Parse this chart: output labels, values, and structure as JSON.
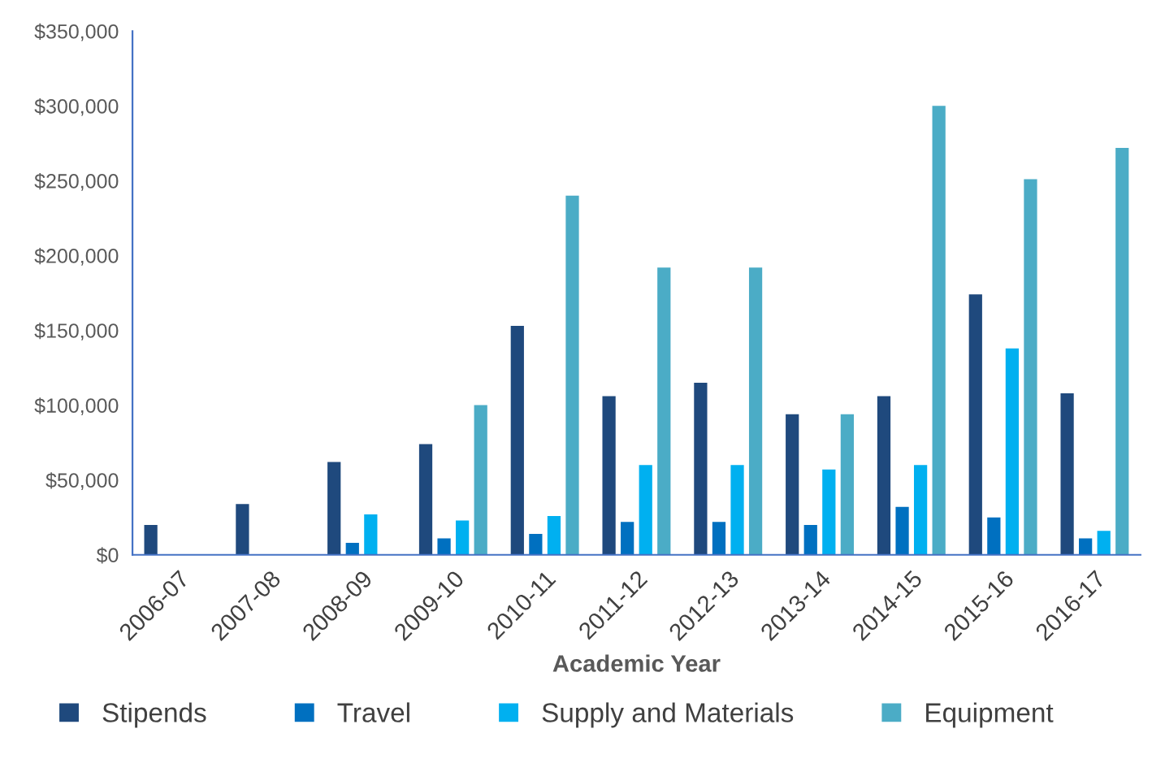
{
  "chart_data": {
    "type": "bar",
    "xlabel": "Academic Year",
    "categories": [
      "2006-07",
      "2007-08",
      "2008-09",
      "2009-10",
      "2010-11",
      "2011-12",
      "2012-13",
      "2013-14",
      "2014-15",
      "2015-16",
      "2016-17"
    ],
    "series": [
      {
        "name": "Stipends",
        "color": "#1f497d",
        "values": [
          20000,
          34000,
          62000,
          74000,
          153000,
          106000,
          115000,
          94000,
          106000,
          174000,
          108000
        ]
      },
      {
        "name": "Travel",
        "color": "#0070c0",
        "values": [
          null,
          null,
          8000,
          11000,
          14000,
          22000,
          22000,
          20000,
          32000,
          25000,
          11000
        ]
      },
      {
        "name": "Supply and Materials",
        "color": "#00b0f0",
        "values": [
          null,
          null,
          27000,
          23000,
          26000,
          60000,
          60000,
          57000,
          60000,
          138000,
          16000
        ]
      },
      {
        "name": "Equipment",
        "color": "#4bacc6",
        "values": [
          null,
          null,
          null,
          100000,
          240000,
          192000,
          192000,
          94000,
          300000,
          251000,
          272000
        ]
      }
    ],
    "ylim": [
      0,
      350000
    ],
    "yticks": [
      {
        "value": 0,
        "label": "$0"
      },
      {
        "value": 50000,
        "label": "$50,000"
      },
      {
        "value": 100000,
        "label": "$100,000"
      },
      {
        "value": 150000,
        "label": "$150,000"
      },
      {
        "value": 200000,
        "label": "$200,000"
      },
      {
        "value": 250000,
        "label": "$250,000"
      },
      {
        "value": 300000,
        "label": "$300,000"
      },
      {
        "value": 350000,
        "label": "$350,000"
      }
    ],
    "grid": false,
    "legend": "bottom"
  }
}
